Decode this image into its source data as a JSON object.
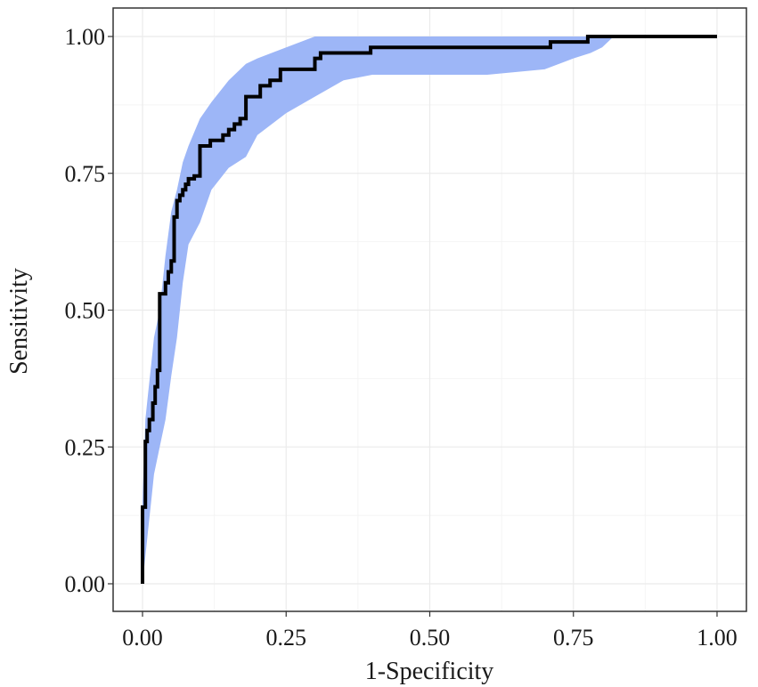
{
  "chart_data": {
    "type": "line",
    "title": "",
    "xlabel": "1-Specificity",
    "ylabel": "Sensitivity",
    "xlim": [
      0,
      1
    ],
    "ylim": [
      0,
      1
    ],
    "x_ticks": [
      0,
      0.25,
      0.5,
      0.75,
      1
    ],
    "y_ticks": [
      0,
      0.25,
      0.5,
      0.75,
      1
    ],
    "x_tick_labels": [
      "0.00",
      "0.25",
      "0.50",
      "0.75",
      "1.00"
    ],
    "y_tick_labels": [
      "0.00",
      "0.25",
      "0.50",
      "0.75",
      "1.00"
    ],
    "grid": true,
    "legend": "none",
    "colors": {
      "line": "#000000",
      "band": "#9db6f7",
      "frame": "#333333"
    },
    "series": [
      {
        "kind": "step-line",
        "x": [
          0,
          0,
          0.005,
          0.005,
          0.008,
          0.008,
          0.012,
          0.012,
          0.018,
          0.018,
          0.022,
          0.022,
          0.026,
          0.026,
          0.03,
          0.03,
          0.04,
          0.04,
          0.045,
          0.045,
          0.05,
          0.05,
          0.055,
          0.055,
          0.06,
          0.06,
          0.065,
          0.065,
          0.07,
          0.07,
          0.075,
          0.075,
          0.08,
          0.08,
          0.09,
          0.09,
          0.1,
          0.1,
          0.118,
          0.118,
          0.14,
          0.14,
          0.15,
          0.15,
          0.16,
          0.16,
          0.17,
          0.17,
          0.18,
          0.18,
          0.205,
          0.205,
          0.222,
          0.222,
          0.24,
          0.24,
          0.3,
          0.3,
          0.31,
          0.31,
          0.397,
          0.397,
          0.71,
          0.71,
          0.775,
          0.775,
          1
        ],
        "y": [
          0,
          0.14,
          0.14,
          0.26,
          0.26,
          0.28,
          0.28,
          0.3,
          0.3,
          0.33,
          0.33,
          0.36,
          0.36,
          0.39,
          0.39,
          0.53,
          0.53,
          0.55,
          0.55,
          0.57,
          0.57,
          0.59,
          0.59,
          0.67,
          0.67,
          0.7,
          0.7,
          0.71,
          0.71,
          0.72,
          0.72,
          0.73,
          0.73,
          0.74,
          0.74,
          0.745,
          0.745,
          0.8,
          0.8,
          0.81,
          0.81,
          0.82,
          0.82,
          0.83,
          0.83,
          0.84,
          0.84,
          0.85,
          0.85,
          0.89,
          0.89,
          0.91,
          0.91,
          0.92,
          0.92,
          0.94,
          0.94,
          0.96,
          0.96,
          0.97,
          0.97,
          0.98,
          0.98,
          0.99,
          0.99,
          1.0,
          1.0
        ]
      },
      {
        "kind": "confidence-band",
        "x": [
          0,
          0.005,
          0.01,
          0.015,
          0.02,
          0.03,
          0.04,
          0.05,
          0.06,
          0.07,
          0.08,
          0.1,
          0.12,
          0.15,
          0.18,
          0.2,
          0.25,
          0.3,
          0.35,
          0.4,
          0.5,
          0.6,
          0.7,
          0.75,
          0.78,
          0.8,
          0.82
        ],
        "upper": [
          0.15,
          0.3,
          0.35,
          0.4,
          0.45,
          0.5,
          0.6,
          0.68,
          0.72,
          0.77,
          0.8,
          0.85,
          0.88,
          0.92,
          0.95,
          0.96,
          0.98,
          1.0,
          1.0,
          1.0,
          1.0,
          1.0,
          1.0,
          1.0,
          1.0,
          1.0,
          1.0
        ],
        "lower": [
          0.0,
          0.05,
          0.1,
          0.15,
          0.2,
          0.25,
          0.3,
          0.38,
          0.45,
          0.55,
          0.62,
          0.66,
          0.72,
          0.76,
          0.78,
          0.82,
          0.86,
          0.89,
          0.92,
          0.93,
          0.93,
          0.93,
          0.94,
          0.96,
          0.97,
          0.98,
          1.0
        ]
      }
    ]
  }
}
